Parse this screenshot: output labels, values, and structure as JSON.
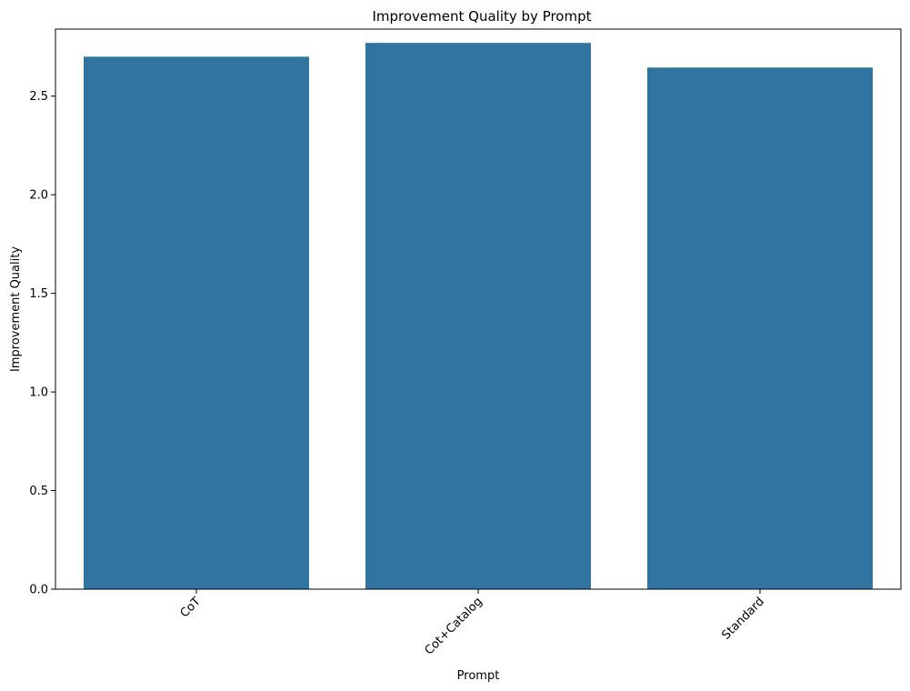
{
  "chart_data": {
    "type": "bar",
    "title": "Improvement Quality by Prompt",
    "xlabel": "Prompt",
    "ylabel": "Improvement Quality",
    "categories": [
      "CoT",
      "Cot+Catalog",
      "Standard"
    ],
    "values": [
      2.7,
      2.77,
      2.645
    ],
    "ylim": [
      0,
      2.84
    ],
    "yticks": [
      "0.0",
      "0.5",
      "1.0",
      "1.5",
      "2.0",
      "2.5"
    ],
    "bar_color": "#3274a1",
    "grid": false,
    "xtick_rotation_deg": 45
  }
}
